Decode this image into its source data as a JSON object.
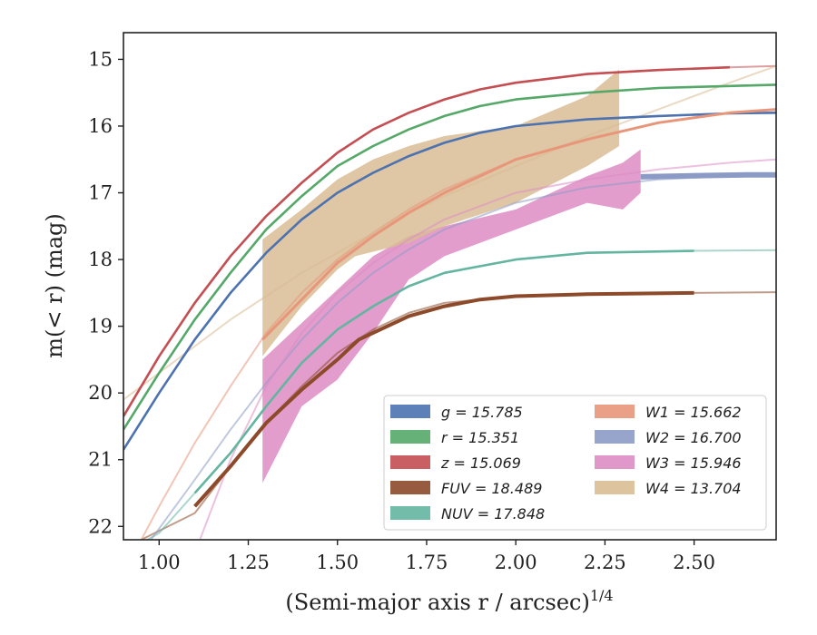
{
  "chart_data": {
    "type": "line",
    "xlabel": "(Semi-major axis r / arcsec)",
    "xlabel_superscript": "1/4",
    "ylabel": "m(< r) (mag)",
    "xlim": [
      0.9,
      2.73
    ],
    "ylim": [
      22.2,
      14.6
    ],
    "y_inverted": true,
    "x_ticks": [
      1.0,
      1.25,
      1.5,
      1.75,
      2.0,
      2.25,
      2.5
    ],
    "x_tick_labels": [
      "1.00",
      "1.25",
      "1.50",
      "1.75",
      "2.00",
      "2.25",
      "2.50"
    ],
    "y_ticks": [
      15,
      16,
      17,
      18,
      19,
      20,
      21,
      22
    ],
    "y_tick_labels": [
      "15",
      "16",
      "17",
      "18",
      "19",
      "20",
      "21",
      "22"
    ],
    "grid": false,
    "legend_position": "lower-right",
    "series": [
      {
        "name": "g = 15.785",
        "band": "g",
        "mag": "15.785",
        "color": "#4c72b0",
        "model_x": [
          0.9,
          1.0,
          1.1,
          1.2,
          1.3,
          1.4,
          1.5,
          1.6,
          1.7,
          1.8,
          1.9,
          2.0,
          2.2,
          2.4,
          2.6,
          2.73
        ],
        "model_y": [
          20.85,
          20.0,
          19.2,
          18.5,
          17.9,
          17.4,
          17.0,
          16.7,
          16.45,
          16.25,
          16.1,
          16.0,
          15.9,
          15.85,
          15.81,
          15.8
        ],
        "data_x": [
          0.9,
          1.0,
          1.1,
          1.2,
          1.3,
          1.4,
          1.5,
          1.6,
          1.7,
          1.8,
          1.9,
          2.0,
          2.2,
          2.4,
          2.6,
          2.73
        ],
        "data_y": [
          20.85,
          20.0,
          19.2,
          18.5,
          17.9,
          17.4,
          17.0,
          16.7,
          16.45,
          16.25,
          16.1,
          16.0,
          15.9,
          15.85,
          15.81,
          15.8
        ]
      },
      {
        "name": "r = 15.351",
        "band": "r",
        "mag": "15.351",
        "color": "#55a868",
        "model_x": [
          0.9,
          1.0,
          1.1,
          1.2,
          1.3,
          1.4,
          1.5,
          1.6,
          1.7,
          1.8,
          1.9,
          2.0,
          2.2,
          2.4,
          2.6,
          2.73
        ],
        "model_y": [
          20.55,
          19.7,
          18.9,
          18.2,
          17.55,
          17.05,
          16.6,
          16.3,
          16.05,
          15.85,
          15.7,
          15.6,
          15.5,
          15.43,
          15.4,
          15.38
        ],
        "data_x": [
          0.9,
          1.0,
          1.1,
          1.2,
          1.3,
          1.4,
          1.5,
          1.6,
          1.7,
          1.8,
          1.9,
          2.0,
          2.2,
          2.4,
          2.6,
          2.73
        ],
        "data_y": [
          20.55,
          19.7,
          18.9,
          18.2,
          17.55,
          17.05,
          16.6,
          16.3,
          16.05,
          15.85,
          15.7,
          15.6,
          15.5,
          15.43,
          15.4,
          15.38
        ]
      },
      {
        "name": "z = 15.069",
        "band": "z",
        "mag": "15.069",
        "color": "#c44e52",
        "model_x": [
          0.9,
          1.0,
          1.1,
          1.2,
          1.3,
          1.4,
          1.5,
          1.6,
          1.7,
          1.8,
          1.9,
          2.0,
          2.2,
          2.4,
          2.6,
          2.73
        ],
        "model_y": [
          20.35,
          19.45,
          18.65,
          17.95,
          17.35,
          16.85,
          16.4,
          16.05,
          15.8,
          15.6,
          15.45,
          15.35,
          15.22,
          15.16,
          15.12,
          15.1
        ],
        "data_x": [
          0.9,
          1.0,
          1.1,
          1.2,
          1.3,
          1.4,
          1.5,
          1.6,
          1.7,
          1.8,
          1.9,
          2.0,
          2.2,
          2.4,
          2.6
        ],
        "data_y": [
          20.35,
          19.45,
          18.65,
          17.95,
          17.35,
          16.85,
          16.4,
          16.05,
          15.8,
          15.6,
          15.45,
          15.35,
          15.22,
          15.16,
          15.12
        ]
      },
      {
        "name": "FUV = 18.489",
        "band": "FUV",
        "mag": "18.489",
        "color": "#8c4a2a",
        "model_x": [
          0.95,
          1.1,
          1.2,
          1.3,
          1.4,
          1.5,
          1.6,
          1.7,
          1.8,
          2.0,
          2.2,
          2.5,
          2.73
        ],
        "model_y": [
          22.2,
          21.8,
          21.1,
          20.45,
          19.9,
          19.4,
          19.05,
          18.8,
          18.65,
          18.55,
          18.52,
          18.5,
          18.49
        ],
        "data_x": [
          1.1,
          1.2,
          1.3,
          1.4,
          1.5,
          1.56,
          1.7,
          1.8,
          1.9,
          2.0,
          2.2,
          2.5
        ],
        "data_y": [
          21.7,
          21.1,
          20.45,
          19.95,
          19.5,
          19.2,
          18.85,
          18.7,
          18.6,
          18.55,
          18.52,
          18.5
        ]
      },
      {
        "name": "NUV = 17.848",
        "band": "NUV",
        "mag": "17.848",
        "color": "#64b5a0",
        "model_x": [
          0.9,
          1.0,
          1.1,
          1.2,
          1.3,
          1.4,
          1.5,
          1.6,
          1.7,
          1.8,
          2.0,
          2.2,
          2.5,
          2.73
        ],
        "model_y": [
          22.4,
          22.1,
          21.5,
          20.9,
          20.2,
          19.55,
          19.05,
          18.7,
          18.4,
          18.2,
          18.0,
          17.9,
          17.87,
          17.86
        ],
        "data_x": [
          1.1,
          1.2,
          1.3,
          1.4,
          1.5,
          1.6,
          1.7,
          1.8,
          2.0,
          2.2,
          2.5
        ],
        "data_y": [
          21.5,
          20.9,
          20.2,
          19.55,
          19.05,
          18.7,
          18.4,
          18.2,
          18.0,
          17.9,
          17.87
        ]
      },
      {
        "name": "W1 = 15.662",
        "band": "W1",
        "mag": "15.662",
        "color": "#e8967a",
        "model_x": [
          0.9,
          1.0,
          1.1,
          1.2,
          1.3,
          1.4,
          1.5,
          1.6,
          1.7,
          1.8,
          2.0,
          2.2,
          2.4,
          2.6,
          2.73
        ],
        "model_y": [
          22.7,
          21.7,
          20.75,
          19.9,
          19.1,
          18.5,
          18.0,
          17.6,
          17.25,
          16.95,
          16.5,
          16.2,
          15.95,
          15.8,
          15.75
        ],
        "band_x": [
          1.29,
          1.4,
          1.5,
          1.6,
          1.7,
          1.8,
          1.9,
          2.0,
          2.2,
          2.4,
          2.6,
          2.73
        ],
        "band_y": [
          19.2,
          18.6,
          18.05,
          17.65,
          17.3,
          17.0,
          16.75,
          16.5,
          16.2,
          15.95,
          15.8,
          15.75
        ]
      },
      {
        "name": "W2 = 16.700",
        "band": "W2",
        "mag": "16.700",
        "color": "#8c9bc6",
        "model_x": [
          0.95,
          1.1,
          1.2,
          1.3,
          1.4,
          1.5,
          1.6,
          1.7,
          1.8,
          2.0,
          2.2,
          2.4,
          2.6,
          2.73
        ],
        "model_y": [
          22.4,
          21.3,
          20.55,
          19.85,
          19.2,
          18.65,
          18.2,
          17.85,
          17.55,
          17.15,
          16.92,
          16.8,
          16.75,
          16.73
        ],
        "band_x": [
          2.35,
          2.45,
          2.55,
          2.65,
          2.73
        ],
        "band_y": [
          16.76,
          16.75,
          16.74,
          16.73,
          16.73
        ]
      },
      {
        "name": "W3 = 15.946",
        "band": "W3",
        "mag": "15.946",
        "color": "#dd8cc4",
        "model_x": [
          1.1,
          1.2,
          1.3,
          1.4,
          1.5,
          1.6,
          1.7,
          1.8,
          2.0,
          2.2,
          2.4,
          2.6,
          2.73
        ],
        "model_y": [
          22.4,
          21.0,
          19.9,
          19.1,
          18.5,
          18.05,
          17.7,
          17.4,
          17.0,
          16.8,
          16.65,
          16.55,
          16.5
        ],
        "band_upper_x": [
          1.29,
          1.5,
          1.6,
          1.7,
          1.8,
          2.0,
          2.2,
          2.3,
          2.35
        ],
        "band_upper_y": [
          19.5,
          18.45,
          17.95,
          17.65,
          17.5,
          17.25,
          16.75,
          16.55,
          16.35
        ],
        "band_lower_x": [
          1.29,
          1.4,
          1.5,
          1.6,
          1.7,
          1.8,
          2.0,
          2.2,
          2.3,
          2.35
        ],
        "band_lower_y": [
          21.35,
          20.2,
          19.8,
          19.1,
          18.3,
          17.95,
          17.55,
          17.15,
          17.25,
          17.0
        ]
      },
      {
        "name": "W4 = 13.704",
        "band": "W4",
        "mag": "13.704",
        "color": "#d9bc94",
        "model_x": [
          0.9,
          1.0,
          1.1,
          1.2,
          1.3,
          1.4,
          1.5,
          1.6,
          1.7,
          1.8,
          2.0,
          2.2,
          2.4,
          2.6,
          2.73
        ],
        "model_y": [
          20.1,
          19.7,
          19.3,
          18.9,
          18.55,
          18.2,
          17.9,
          17.6,
          17.3,
          17.05,
          16.6,
          16.15,
          15.75,
          15.35,
          15.1
        ],
        "band_upper_x": [
          1.29,
          1.4,
          1.5,
          1.6,
          1.7,
          1.8,
          2.0,
          2.2,
          2.29
        ],
        "band_upper_y": [
          17.7,
          17.25,
          16.8,
          16.5,
          16.3,
          16.15,
          16.0,
          15.55,
          15.15
        ],
        "band_lower_x": [
          1.29,
          1.4,
          1.5,
          1.55,
          1.7,
          1.8,
          2.0,
          2.2,
          2.29
        ],
        "band_lower_y": [
          19.45,
          18.7,
          18.15,
          17.95,
          17.75,
          17.5,
          17.15,
          16.6,
          16.3
        ]
      }
    ],
    "legend_columns": [
      [
        "g = 15.785",
        "r = 15.351",
        "z = 15.069",
        "FUV = 18.489",
        "NUV = 17.848"
      ],
      [
        "W1 = 15.662",
        "W2 = 16.700",
        "W3 = 15.946",
        "W4 = 13.704"
      ]
    ]
  }
}
